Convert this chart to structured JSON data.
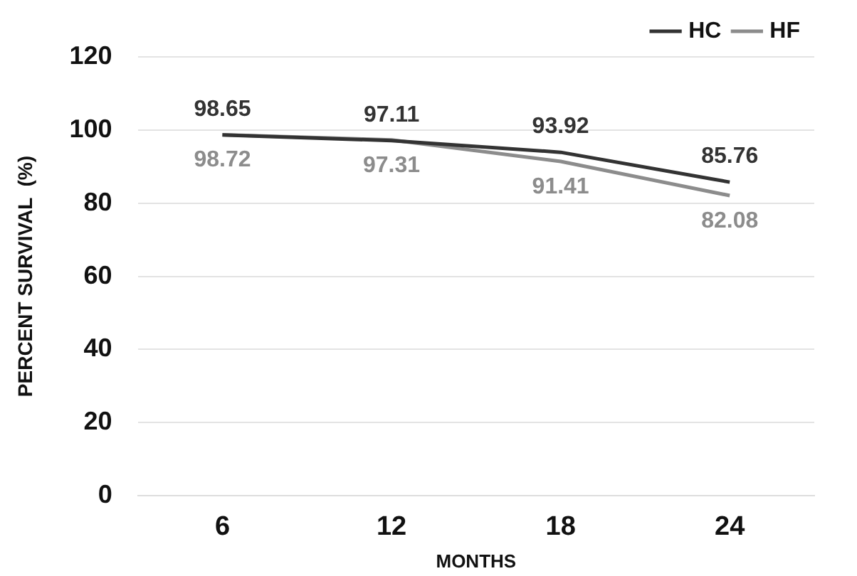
{
  "chart_data": {
    "type": "line",
    "xlabel": "MONTHS",
    "ylabel": "PERCENT SURVIVAL  (%)",
    "categories": [
      "6",
      "12",
      "18",
      "24"
    ],
    "series": [
      {
        "name": "HC",
        "color": "#333333",
        "values": [
          98.65,
          97.11,
          93.92,
          85.76
        ]
      },
      {
        "name": "HF",
        "color": "#8c8c8c",
        "values": [
          98.72,
          97.31,
          91.41,
          82.08
        ]
      }
    ],
    "ylim": [
      0,
      120
    ],
    "yticks": [
      0,
      20,
      40,
      60,
      80,
      100,
      120
    ],
    "grid": "y",
    "legend": "top right",
    "marker": "none",
    "line_style": "solid",
    "data_labels": true
  }
}
